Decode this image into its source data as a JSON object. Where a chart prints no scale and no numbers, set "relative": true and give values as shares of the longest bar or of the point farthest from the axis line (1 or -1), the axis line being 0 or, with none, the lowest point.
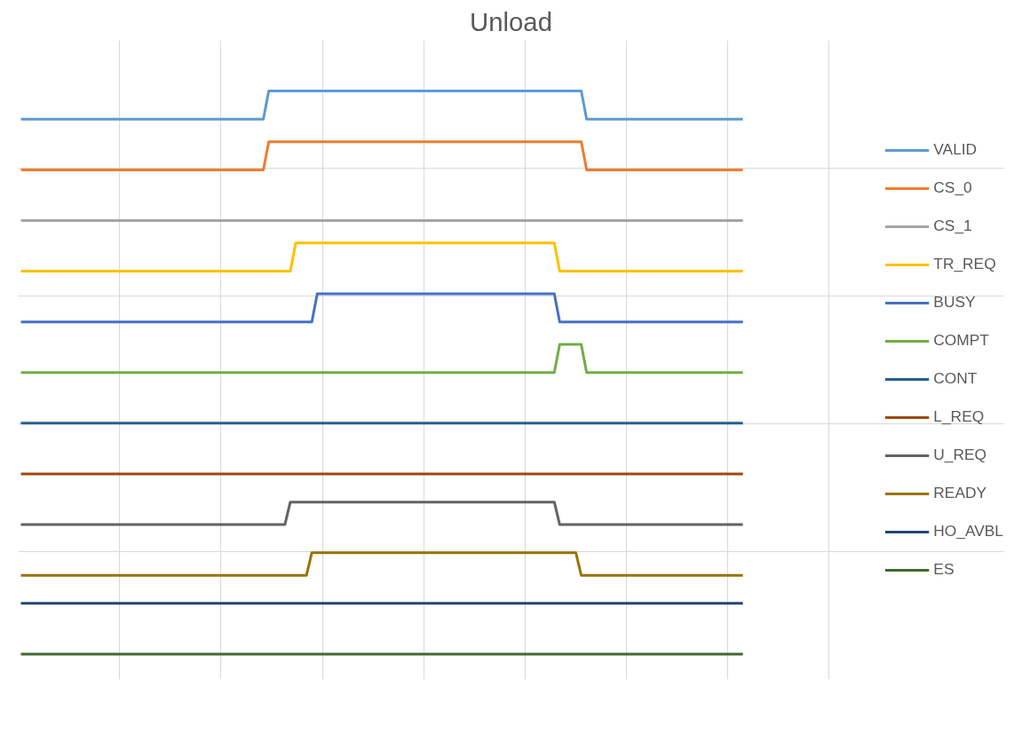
{
  "chart_data": {
    "type": "line",
    "title": "Unload",
    "relative": true,
    "grid": true,
    "tick_labels": false,
    "legend": "right",
    "categories": [
      null,
      null,
      null,
      null,
      null,
      null,
      null,
      null,
      null,
      null,
      null,
      null,
      null,
      null,
      null,
      null,
      null,
      null,
      null,
      null,
      null,
      null,
      null,
      null,
      null,
      null,
      null,
      null,
      null,
      null,
      null,
      null,
      null,
      null,
      null,
      null,
      null,
      null,
      null,
      null,
      null,
      null,
      null,
      null,
      null,
      null,
      null,
      null,
      null,
      null,
      null,
      null,
      null,
      null,
      null,
      null,
      null,
      null,
      null,
      null,
      null,
      null,
      null,
      null,
      null,
      null,
      null,
      null,
      null,
      null,
      null,
      null,
      null,
      null,
      null,
      null,
      null,
      null,
      null,
      null,
      null,
      null,
      null,
      null,
      null,
      null,
      null,
      null,
      null,
      null,
      null,
      null,
      null,
      null,
      null,
      null,
      null,
      null,
      null,
      null,
      null,
      null,
      null,
      null,
      null,
      null,
      null,
      null,
      null,
      null,
      null,
      null,
      null,
      null,
      null,
      null,
      null,
      null,
      null,
      null,
      null,
      null,
      null,
      null,
      null,
      null,
      null,
      null,
      null,
      null,
      null,
      null,
      null,
      null,
      null
    ],
    "series": [
      {
        "name": "VALID",
        "color": "#5b9bd5",
        "values": [
          0.95,
          0.95,
          0.95,
          0.95,
          0.95,
          0.95,
          0.95,
          0.95,
          0.95,
          0.95,
          0.95,
          0.95,
          0.95,
          0.95,
          0.95,
          0.95,
          0.95,
          0.95,
          0.95,
          0.95,
          0.95,
          0.95,
          0.95,
          0.95,
          0.95,
          0.95,
          0.95,
          0.95,
          0.95,
          0.95,
          0.95,
          0.95,
          0.95,
          0.95,
          0.95,
          0.95,
          0.95,
          0.95,
          0.95,
          0.95,
          0.95,
          0.95,
          0.95,
          0.95,
          0.95,
          0.95,
          1,
          1,
          1,
          1,
          1,
          1,
          1,
          1,
          1,
          1,
          1,
          1,
          1,
          1,
          1,
          1,
          1,
          1,
          1,
          1,
          1,
          1,
          1,
          1,
          1,
          1,
          1,
          1,
          1,
          1,
          1,
          1,
          1,
          1,
          1,
          1,
          1,
          1,
          1,
          1,
          1,
          1,
          1,
          1,
          1,
          1,
          1,
          1,
          1,
          1,
          1,
          1,
          1,
          1,
          1,
          1,
          1,
          1,
          1,
          0.95,
          0.95,
          0.95,
          0.95,
          0.95,
          0.95,
          0.95,
          0.95,
          0.95,
          0.95,
          0.95,
          0.95,
          0.95,
          0.95,
          0.95,
          0.95,
          0.95,
          0.95,
          0.95,
          0.95,
          0.95,
          0.95,
          0.95,
          0.95,
          0.95,
          0.95,
          0.95,
          0.95,
          0.95,
          0.95
        ]
      },
      {
        "name": "CS_0",
        "color": "#ed7d31",
        "values": [
          0.86,
          0.86,
          0.86,
          0.86,
          0.86,
          0.86,
          0.86,
          0.86,
          0.86,
          0.86,
          0.86,
          0.86,
          0.86,
          0.86,
          0.86,
          0.86,
          0.86,
          0.86,
          0.86,
          0.86,
          0.86,
          0.86,
          0.86,
          0.86,
          0.86,
          0.86,
          0.86,
          0.86,
          0.86,
          0.86,
          0.86,
          0.86,
          0.86,
          0.86,
          0.86,
          0.86,
          0.86,
          0.86,
          0.86,
          0.86,
          0.86,
          0.86,
          0.86,
          0.86,
          0.86,
          0.86,
          0.91,
          0.91,
          0.91,
          0.91,
          0.91,
          0.91,
          0.91,
          0.91,
          0.91,
          0.91,
          0.91,
          0.91,
          0.91,
          0.91,
          0.91,
          0.91,
          0.91,
          0.91,
          0.91,
          0.91,
          0.91,
          0.91,
          0.91,
          0.91,
          0.91,
          0.91,
          0.91,
          0.91,
          0.91,
          0.91,
          0.91,
          0.91,
          0.91,
          0.91,
          0.91,
          0.91,
          0.91,
          0.91,
          0.91,
          0.91,
          0.91,
          0.91,
          0.91,
          0.91,
          0.91,
          0.91,
          0.91,
          0.91,
          0.91,
          0.91,
          0.91,
          0.91,
          0.91,
          0.91,
          0.91,
          0.91,
          0.91,
          0.91,
          0.91,
          0.86,
          0.86,
          0.86,
          0.86,
          0.86,
          0.86,
          0.86,
          0.86,
          0.86,
          0.86,
          0.86,
          0.86,
          0.86,
          0.86,
          0.86,
          0.86,
          0.86,
          0.86,
          0.86,
          0.86,
          0.86,
          0.86,
          0.86,
          0.86,
          0.86,
          0.86,
          0.86,
          0.86,
          0.86,
          0.86
        ]
      },
      {
        "name": "CS_1",
        "color": "#a5a5a5",
        "values": [
          0.77,
          0.77,
          0.77,
          0.77,
          0.77,
          0.77,
          0.77,
          0.77,
          0.77,
          0.77,
          0.77,
          0.77,
          0.77,
          0.77,
          0.77,
          0.77,
          0.77,
          0.77,
          0.77,
          0.77,
          0.77,
          0.77,
          0.77,
          0.77,
          0.77,
          0.77,
          0.77,
          0.77,
          0.77,
          0.77,
          0.77,
          0.77,
          0.77,
          0.77,
          0.77,
          0.77,
          0.77,
          0.77,
          0.77,
          0.77,
          0.77,
          0.77,
          0.77,
          0.77,
          0.77,
          0.77,
          0.77,
          0.77,
          0.77,
          0.77,
          0.77,
          0.77,
          0.77,
          0.77,
          0.77,
          0.77,
          0.77,
          0.77,
          0.77,
          0.77,
          0.77,
          0.77,
          0.77,
          0.77,
          0.77,
          0.77,
          0.77,
          0.77,
          0.77,
          0.77,
          0.77,
          0.77,
          0.77,
          0.77,
          0.77,
          0.77,
          0.77,
          0.77,
          0.77,
          0.77,
          0.77,
          0.77,
          0.77,
          0.77,
          0.77,
          0.77,
          0.77,
          0.77,
          0.77,
          0.77,
          0.77,
          0.77,
          0.77,
          0.77,
          0.77,
          0.77,
          0.77,
          0.77,
          0.77,
          0.77,
          0.77,
          0.77,
          0.77,
          0.77,
          0.77,
          0.77,
          0.77,
          0.77,
          0.77,
          0.77,
          0.77,
          0.77,
          0.77,
          0.77,
          0.77,
          0.77,
          0.77,
          0.77,
          0.77,
          0.77,
          0.77,
          0.77,
          0.77,
          0.77,
          0.77,
          0.77,
          0.77,
          0.77,
          0.77,
          0.77,
          0.77,
          0.77,
          0.77,
          0.77,
          0.77
        ]
      },
      {
        "name": "TR_REQ",
        "color": "#ffc000",
        "values": [
          0.68,
          0.68,
          0.68,
          0.68,
          0.68,
          0.68,
          0.68,
          0.68,
          0.68,
          0.68,
          0.68,
          0.68,
          0.68,
          0.68,
          0.68,
          0.68,
          0.68,
          0.68,
          0.68,
          0.68,
          0.68,
          0.68,
          0.68,
          0.68,
          0.68,
          0.68,
          0.68,
          0.68,
          0.68,
          0.68,
          0.68,
          0.68,
          0.68,
          0.68,
          0.68,
          0.68,
          0.68,
          0.68,
          0.68,
          0.68,
          0.68,
          0.68,
          0.68,
          0.68,
          0.68,
          0.68,
          0.68,
          0.68,
          0.68,
          0.68,
          0.68,
          0.73,
          0.73,
          0.73,
          0.73,
          0.73,
          0.73,
          0.73,
          0.73,
          0.73,
          0.73,
          0.73,
          0.73,
          0.73,
          0.73,
          0.73,
          0.73,
          0.73,
          0.73,
          0.73,
          0.73,
          0.73,
          0.73,
          0.73,
          0.73,
          0.73,
          0.73,
          0.73,
          0.73,
          0.73,
          0.73,
          0.73,
          0.73,
          0.73,
          0.73,
          0.73,
          0.73,
          0.73,
          0.73,
          0.73,
          0.73,
          0.73,
          0.73,
          0.73,
          0.73,
          0.73,
          0.73,
          0.73,
          0.73,
          0.73,
          0.68,
          0.68,
          0.68,
          0.68,
          0.68,
          0.68,
          0.68,
          0.68,
          0.68,
          0.68,
          0.68,
          0.68,
          0.68,
          0.68,
          0.68,
          0.68,
          0.68,
          0.68,
          0.68,
          0.68,
          0.68,
          0.68,
          0.68,
          0.68,
          0.68,
          0.68,
          0.68,
          0.68,
          0.68,
          0.68,
          0.68,
          0.68,
          0.68,
          0.68,
          0.68
        ]
      },
      {
        "name": "BUSY",
        "color": "#4472c4",
        "values": [
          0.59,
          0.59,
          0.59,
          0.59,
          0.59,
          0.59,
          0.59,
          0.59,
          0.59,
          0.59,
          0.59,
          0.59,
          0.59,
          0.59,
          0.59,
          0.59,
          0.59,
          0.59,
          0.59,
          0.59,
          0.59,
          0.59,
          0.59,
          0.59,
          0.59,
          0.59,
          0.59,
          0.59,
          0.59,
          0.59,
          0.59,
          0.59,
          0.59,
          0.59,
          0.59,
          0.59,
          0.59,
          0.59,
          0.59,
          0.59,
          0.59,
          0.59,
          0.59,
          0.59,
          0.59,
          0.59,
          0.59,
          0.59,
          0.59,
          0.59,
          0.59,
          0.59,
          0.59,
          0.59,
          0.59,
          0.64,
          0.64,
          0.64,
          0.64,
          0.64,
          0.64,
          0.64,
          0.64,
          0.64,
          0.64,
          0.64,
          0.64,
          0.64,
          0.64,
          0.64,
          0.64,
          0.64,
          0.64,
          0.64,
          0.64,
          0.64,
          0.64,
          0.64,
          0.64,
          0.64,
          0.64,
          0.64,
          0.64,
          0.64,
          0.64,
          0.64,
          0.64,
          0.64,
          0.64,
          0.64,
          0.64,
          0.64,
          0.64,
          0.64,
          0.64,
          0.64,
          0.64,
          0.64,
          0.64,
          0.64,
          0.59,
          0.59,
          0.59,
          0.59,
          0.59,
          0.59,
          0.59,
          0.59,
          0.59,
          0.59,
          0.59,
          0.59,
          0.59,
          0.59,
          0.59,
          0.59,
          0.59,
          0.59,
          0.59,
          0.59,
          0.59,
          0.59,
          0.59,
          0.59,
          0.59,
          0.59,
          0.59,
          0.59,
          0.59,
          0.59,
          0.59,
          0.59,
          0.59,
          0.59,
          0.59
        ]
      },
      {
        "name": "COMPT",
        "color": "#70ad47",
        "values": [
          0.5,
          0.5,
          0.5,
          0.5,
          0.5,
          0.5,
          0.5,
          0.5,
          0.5,
          0.5,
          0.5,
          0.5,
          0.5,
          0.5,
          0.5,
          0.5,
          0.5,
          0.5,
          0.5,
          0.5,
          0.5,
          0.5,
          0.5,
          0.5,
          0.5,
          0.5,
          0.5,
          0.5,
          0.5,
          0.5,
          0.5,
          0.5,
          0.5,
          0.5,
          0.5,
          0.5,
          0.5,
          0.5,
          0.5,
          0.5,
          0.5,
          0.5,
          0.5,
          0.5,
          0.5,
          0.5,
          0.5,
          0.5,
          0.5,
          0.5,
          0.5,
          0.5,
          0.5,
          0.5,
          0.5,
          0.5,
          0.5,
          0.5,
          0.5,
          0.5,
          0.5,
          0.5,
          0.5,
          0.5,
          0.5,
          0.5,
          0.5,
          0.5,
          0.5,
          0.5,
          0.5,
          0.5,
          0.5,
          0.5,
          0.5,
          0.5,
          0.5,
          0.5,
          0.5,
          0.5,
          0.5,
          0.5,
          0.5,
          0.5,
          0.5,
          0.5,
          0.5,
          0.5,
          0.5,
          0.5,
          0.5,
          0.5,
          0.5,
          0.5,
          0.5,
          0.5,
          0.5,
          0.5,
          0.5,
          0.5,
          0.55,
          0.55,
          0.55,
          0.55,
          0.55,
          0.5,
          0.5,
          0.5,
          0.5,
          0.5,
          0.5,
          0.5,
          0.5,
          0.5,
          0.5,
          0.5,
          0.5,
          0.5,
          0.5,
          0.5,
          0.5,
          0.5,
          0.5,
          0.5,
          0.5,
          0.5,
          0.5,
          0.5,
          0.5,
          0.5,
          0.5,
          0.5,
          0.5,
          0.5,
          0.5
        ]
      },
      {
        "name": "CONT",
        "color": "#255e91",
        "values": [
          0.41,
          0.41,
          0.41,
          0.41,
          0.41,
          0.41,
          0.41,
          0.41,
          0.41,
          0.41,
          0.41,
          0.41,
          0.41,
          0.41,
          0.41,
          0.41,
          0.41,
          0.41,
          0.41,
          0.41,
          0.41,
          0.41,
          0.41,
          0.41,
          0.41,
          0.41,
          0.41,
          0.41,
          0.41,
          0.41,
          0.41,
          0.41,
          0.41,
          0.41,
          0.41,
          0.41,
          0.41,
          0.41,
          0.41,
          0.41,
          0.41,
          0.41,
          0.41,
          0.41,
          0.41,
          0.41,
          0.41,
          0.41,
          0.41,
          0.41,
          0.41,
          0.41,
          0.41,
          0.41,
          0.41,
          0.41,
          0.41,
          0.41,
          0.41,
          0.41,
          0.41,
          0.41,
          0.41,
          0.41,
          0.41,
          0.41,
          0.41,
          0.41,
          0.41,
          0.41,
          0.41,
          0.41,
          0.41,
          0.41,
          0.41,
          0.41,
          0.41,
          0.41,
          0.41,
          0.41,
          0.41,
          0.41,
          0.41,
          0.41,
          0.41,
          0.41,
          0.41,
          0.41,
          0.41,
          0.41,
          0.41,
          0.41,
          0.41,
          0.41,
          0.41,
          0.41,
          0.41,
          0.41,
          0.41,
          0.41,
          0.41,
          0.41,
          0.41,
          0.41,
          0.41,
          0.41,
          0.41,
          0.41,
          0.41,
          0.41,
          0.41,
          0.41,
          0.41,
          0.41,
          0.41,
          0.41,
          0.41,
          0.41,
          0.41,
          0.41,
          0.41,
          0.41,
          0.41,
          0.41,
          0.41,
          0.41,
          0.41,
          0.41,
          0.41,
          0.41,
          0.41,
          0.41,
          0.41,
          0.41,
          0.41
        ]
      },
      {
        "name": "L_REQ",
        "color": "#9e480e",
        "values": [
          0.32,
          0.32,
          0.32,
          0.32,
          0.32,
          0.32,
          0.32,
          0.32,
          0.32,
          0.32,
          0.32,
          0.32,
          0.32,
          0.32,
          0.32,
          0.32,
          0.32,
          0.32,
          0.32,
          0.32,
          0.32,
          0.32,
          0.32,
          0.32,
          0.32,
          0.32,
          0.32,
          0.32,
          0.32,
          0.32,
          0.32,
          0.32,
          0.32,
          0.32,
          0.32,
          0.32,
          0.32,
          0.32,
          0.32,
          0.32,
          0.32,
          0.32,
          0.32,
          0.32,
          0.32,
          0.32,
          0.32,
          0.32,
          0.32,
          0.32,
          0.32,
          0.32,
          0.32,
          0.32,
          0.32,
          0.32,
          0.32,
          0.32,
          0.32,
          0.32,
          0.32,
          0.32,
          0.32,
          0.32,
          0.32,
          0.32,
          0.32,
          0.32,
          0.32,
          0.32,
          0.32,
          0.32,
          0.32,
          0.32,
          0.32,
          0.32,
          0.32,
          0.32,
          0.32,
          0.32,
          0.32,
          0.32,
          0.32,
          0.32,
          0.32,
          0.32,
          0.32,
          0.32,
          0.32,
          0.32,
          0.32,
          0.32,
          0.32,
          0.32,
          0.32,
          0.32,
          0.32,
          0.32,
          0.32,
          0.32,
          0.32,
          0.32,
          0.32,
          0.32,
          0.32,
          0.32,
          0.32,
          0.32,
          0.32,
          0.32,
          0.32,
          0.32,
          0.32,
          0.32,
          0.32,
          0.32,
          0.32,
          0.32,
          0.32,
          0.32,
          0.32,
          0.32,
          0.32,
          0.32,
          0.32,
          0.32,
          0.32,
          0.32,
          0.32,
          0.32,
          0.32,
          0.32,
          0.32,
          0.32,
          0.32
        ]
      },
      {
        "name": "U_REQ",
        "color": "#636363",
        "values": [
          0.23,
          0.23,
          0.23,
          0.23,
          0.23,
          0.23,
          0.23,
          0.23,
          0.23,
          0.23,
          0.23,
          0.23,
          0.23,
          0.23,
          0.23,
          0.23,
          0.23,
          0.23,
          0.23,
          0.23,
          0.23,
          0.23,
          0.23,
          0.23,
          0.23,
          0.23,
          0.23,
          0.23,
          0.23,
          0.23,
          0.23,
          0.23,
          0.23,
          0.23,
          0.23,
          0.23,
          0.23,
          0.23,
          0.23,
          0.23,
          0.23,
          0.23,
          0.23,
          0.23,
          0.23,
          0.23,
          0.23,
          0.23,
          0.23,
          0.23,
          0.27,
          0.27,
          0.27,
          0.27,
          0.27,
          0.27,
          0.27,
          0.27,
          0.27,
          0.27,
          0.27,
          0.27,
          0.27,
          0.27,
          0.27,
          0.27,
          0.27,
          0.27,
          0.27,
          0.27,
          0.27,
          0.27,
          0.27,
          0.27,
          0.27,
          0.27,
          0.27,
          0.27,
          0.27,
          0.27,
          0.27,
          0.27,
          0.27,
          0.27,
          0.27,
          0.27,
          0.27,
          0.27,
          0.27,
          0.27,
          0.27,
          0.27,
          0.27,
          0.27,
          0.27,
          0.27,
          0.27,
          0.27,
          0.27,
          0.27,
          0.23,
          0.23,
          0.23,
          0.23,
          0.23,
          0.23,
          0.23,
          0.23,
          0.23,
          0.23,
          0.23,
          0.23,
          0.23,
          0.23,
          0.23,
          0.23,
          0.23,
          0.23,
          0.23,
          0.23,
          0.23,
          0.23,
          0.23,
          0.23,
          0.23,
          0.23,
          0.23,
          0.23,
          0.23,
          0.23,
          0.23,
          0.23,
          0.23,
          0.23,
          0.23
        ]
      },
      {
        "name": "READY",
        "color": "#997300",
        "values": [
          0.14,
          0.14,
          0.14,
          0.14,
          0.14,
          0.14,
          0.14,
          0.14,
          0.14,
          0.14,
          0.14,
          0.14,
          0.14,
          0.14,
          0.14,
          0.14,
          0.14,
          0.14,
          0.14,
          0.14,
          0.14,
          0.14,
          0.14,
          0.14,
          0.14,
          0.14,
          0.14,
          0.14,
          0.14,
          0.14,
          0.14,
          0.14,
          0.14,
          0.14,
          0.14,
          0.14,
          0.14,
          0.14,
          0.14,
          0.14,
          0.14,
          0.14,
          0.14,
          0.14,
          0.14,
          0.14,
          0.14,
          0.14,
          0.14,
          0.14,
          0.14,
          0.14,
          0.14,
          0.14,
          0.18,
          0.18,
          0.18,
          0.18,
          0.18,
          0.18,
          0.18,
          0.18,
          0.18,
          0.18,
          0.18,
          0.18,
          0.18,
          0.18,
          0.18,
          0.18,
          0.18,
          0.18,
          0.18,
          0.18,
          0.18,
          0.18,
          0.18,
          0.18,
          0.18,
          0.18,
          0.18,
          0.18,
          0.18,
          0.18,
          0.18,
          0.18,
          0.18,
          0.18,
          0.18,
          0.18,
          0.18,
          0.18,
          0.18,
          0.18,
          0.18,
          0.18,
          0.18,
          0.18,
          0.18,
          0.18,
          0.18,
          0.18,
          0.18,
          0.18,
          0.14,
          0.14,
          0.14,
          0.14,
          0.14,
          0.14,
          0.14,
          0.14,
          0.14,
          0.14,
          0.14,
          0.14,
          0.14,
          0.14,
          0.14,
          0.14,
          0.14,
          0.14,
          0.14,
          0.14,
          0.14,
          0.14,
          0.14,
          0.14,
          0.14,
          0.14,
          0.14,
          0.14,
          0.14,
          0.14,
          0.14
        ]
      },
      {
        "name": "HO_AVBL",
        "color": "#264478",
        "values": [
          0.09,
          0.09,
          0.09,
          0.09,
          0.09,
          0.09,
          0.09,
          0.09,
          0.09,
          0.09,
          0.09,
          0.09,
          0.09,
          0.09,
          0.09,
          0.09,
          0.09,
          0.09,
          0.09,
          0.09,
          0.09,
          0.09,
          0.09,
          0.09,
          0.09,
          0.09,
          0.09,
          0.09,
          0.09,
          0.09,
          0.09,
          0.09,
          0.09,
          0.09,
          0.09,
          0.09,
          0.09,
          0.09,
          0.09,
          0.09,
          0.09,
          0.09,
          0.09,
          0.09,
          0.09,
          0.09,
          0.09,
          0.09,
          0.09,
          0.09,
          0.09,
          0.09,
          0.09,
          0.09,
          0.09,
          0.09,
          0.09,
          0.09,
          0.09,
          0.09,
          0.09,
          0.09,
          0.09,
          0.09,
          0.09,
          0.09,
          0.09,
          0.09,
          0.09,
          0.09,
          0.09,
          0.09,
          0.09,
          0.09,
          0.09,
          0.09,
          0.09,
          0.09,
          0.09,
          0.09,
          0.09,
          0.09,
          0.09,
          0.09,
          0.09,
          0.09,
          0.09,
          0.09,
          0.09,
          0.09,
          0.09,
          0.09,
          0.09,
          0.09,
          0.09,
          0.09,
          0.09,
          0.09,
          0.09,
          0.09,
          0.09,
          0.09,
          0.09,
          0.09,
          0.09,
          0.09,
          0.09,
          0.09,
          0.09,
          0.09,
          0.09,
          0.09,
          0.09,
          0.09,
          0.09,
          0.09,
          0.09,
          0.09,
          0.09,
          0.09,
          0.09,
          0.09,
          0.09,
          0.09,
          0.09,
          0.09,
          0.09,
          0.09,
          0.09,
          0.09,
          0.09,
          0.09,
          0.09,
          0.09,
          0.09
        ]
      },
      {
        "name": "ES",
        "color": "#43682b",
        "values": [
          0,
          0,
          0,
          0,
          0,
          0,
          0,
          0,
          0,
          0,
          0,
          0,
          0,
          0,
          0,
          0,
          0,
          0,
          0,
          0,
          0,
          0,
          0,
          0,
          0,
          0,
          0,
          0,
          0,
          0,
          0,
          0,
          0,
          0,
          0,
          0,
          0,
          0,
          0,
          0,
          0,
          0,
          0,
          0,
          0,
          0,
          0,
          0,
          0,
          0,
          0,
          0,
          0,
          0,
          0,
          0,
          0,
          0,
          0,
          0,
          0,
          0,
          0,
          0,
          0,
          0,
          0,
          0,
          0,
          0,
          0,
          0,
          0,
          0,
          0,
          0,
          0,
          0,
          0,
          0,
          0,
          0,
          0,
          0,
          0,
          0,
          0,
          0,
          0,
          0,
          0,
          0,
          0,
          0,
          0,
          0,
          0,
          0,
          0,
          0,
          0,
          0,
          0,
          0,
          0,
          0,
          0,
          0,
          0,
          0,
          0,
          0,
          0,
          0,
          0,
          0,
          0,
          0,
          0,
          0,
          0,
          0,
          0,
          0,
          0,
          0,
          0,
          0,
          0,
          0,
          0,
          0,
          0,
          0,
          0
        ]
      }
    ]
  }
}
